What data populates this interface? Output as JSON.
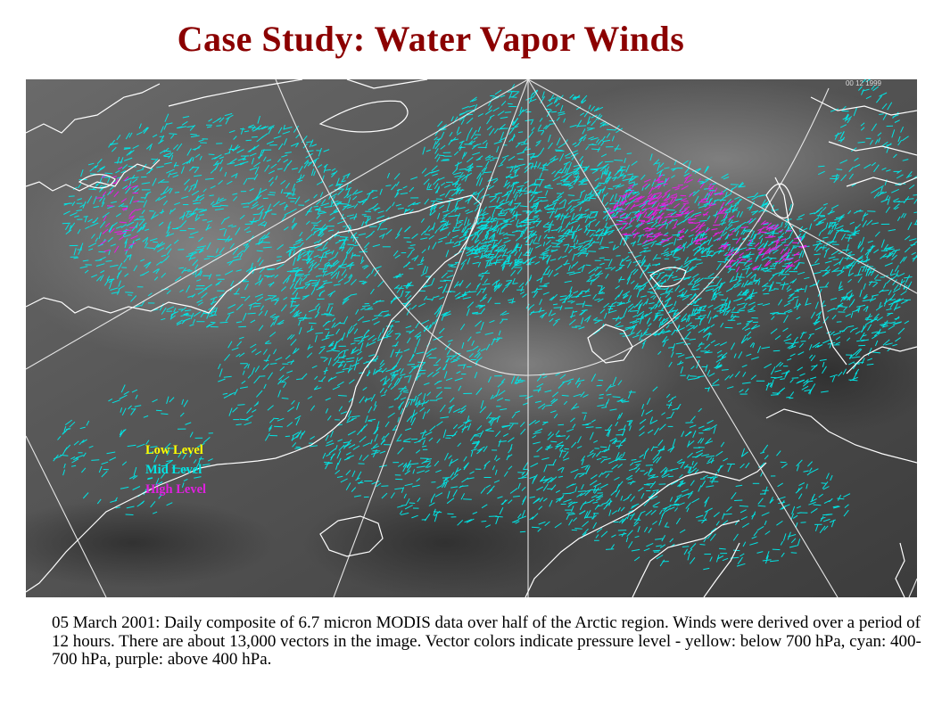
{
  "title": "Case Study: Water Vapor Winds",
  "map": {
    "timestamp": "00 12 1999",
    "background_color": "#5a5a5a",
    "coastline_color": "#ffffff",
    "grid_color": "#e6e6e6"
  },
  "legend": [
    {
      "label": "Low  Level",
      "color": "#ffff00"
    },
    {
      "label": "Mid  Level",
      "color": "#00e5e5"
    },
    {
      "label": "High Level",
      "color": "#e020e0"
    }
  ],
  "caption": "05 March 2001: Daily composite of 6.7 micron MODIS data over half of the Arctic region. Winds were derived over a period of 12 hours. There are about 13,000 vectors in the image. Vector colors indicate pressure level - yellow: below 700 hPa, cyan: 400-700 hPa, purple: above 400 hPa."
}
